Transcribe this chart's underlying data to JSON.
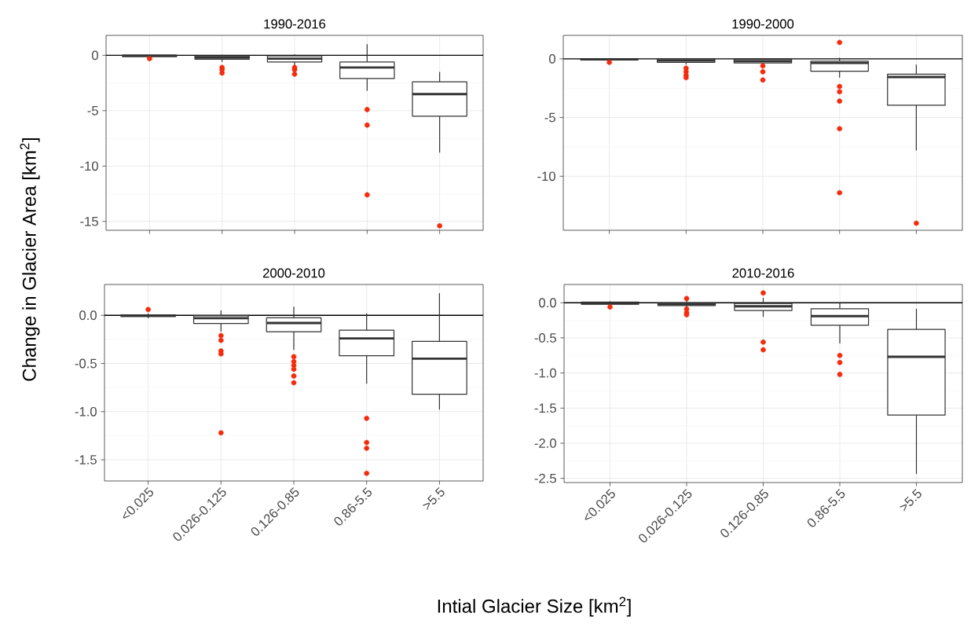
{
  "chart_data": [
    {
      "type": "box",
      "title": "1990-2016",
      "ylabel": "Change in Glacier Area [km$^{2}$]",
      "categories": [
        "<0.025",
        "0.026-0.125",
        "0.126-0.85",
        "0.86-5.5",
        ">5.5"
      ],
      "ylim": [
        -15.8,
        1.8
      ],
      "yticks": [
        -15,
        -10,
        -5,
        0
      ],
      "grid": true,
      "tick_labels": "y",
      "ref_lines": [
        {
          "axis": "y",
          "value": 0,
          "color": "#000000"
        }
      ],
      "series": [
        {
          "type": "box",
          "color": "#333333",
          "boxes": [
            {
              "low": -0.12,
              "q1": -0.1,
              "median": -0.05,
              "q3": 0,
              "high": 0.05
            },
            {
              "low": -0.6,
              "q1": -0.35,
              "median": -0.2,
              "q3": -0.05,
              "high": 0.05
            },
            {
              "low": -1.0,
              "q1": -0.6,
              "median": -0.3,
              "q3": -0.05,
              "high": 0.1
            },
            {
              "low": -3.2,
              "q1": -2.1,
              "median": -1.1,
              "q3": -0.6,
              "high": 1.0
            },
            {
              "low": -8.8,
              "q1": -5.5,
              "median": -3.5,
              "q3": -2.4,
              "high": -1.5
            }
          ]
        },
        {
          "type": "scatter",
          "color": "#f42b0c",
          "marker": "circle",
          "x": [
            "<0.025",
            "0.026-0.125",
            "0.026-0.125",
            "0.026-0.125",
            "0.026-0.125",
            "0.126-0.85",
            "0.126-0.85",
            "0.126-0.85",
            "0.86-5.5",
            "0.86-5.5",
            "0.86-5.5",
            ">5.5"
          ],
          "values": [
            -0.3,
            -1.1,
            -1.3,
            null,
            -1.6,
            -1.1,
            -1.3,
            -1.7,
            -4.9,
            -6.3,
            -12.6,
            -15.4
          ]
        }
      ]
    },
    {
      "type": "box",
      "title": "1990-2000",
      "categories": [
        "<0.025",
        "0.026-0.125",
        "0.126-0.85",
        "0.86-5.5",
        ">5.5"
      ],
      "ylim": [
        -14.6,
        2.0
      ],
      "yticks": [
        -10,
        -5,
        0
      ],
      "grid": true,
      "tick_labels": "y",
      "ref_lines": [
        {
          "axis": "y",
          "value": 0,
          "color": "#000000"
        }
      ],
      "series": [
        {
          "type": "box",
          "color": "#333333",
          "boxes": [
            {
              "low": -0.1,
              "q1": -0.08,
              "median": -0.04,
              "q3": 0,
              "high": 0.05
            },
            {
              "low": -0.5,
              "q1": -0.3,
              "median": -0.15,
              "q3": -0.02,
              "high": 0.05
            },
            {
              "low": -0.5,
              "q1": -0.35,
              "median": -0.2,
              "q3": -0.05,
              "high": 0.05
            },
            {
              "low": -1.6,
              "q1": -1.05,
              "median": -0.35,
              "q3": -0.2,
              "high": 0.1
            },
            {
              "low": -7.8,
              "q1": -3.95,
              "median": -1.55,
              "q3": -1.3,
              "high": -0.5
            }
          ]
        },
        {
          "type": "scatter",
          "color": "#f42b0c",
          "marker": "circle",
          "x": [
            "<0.025",
            "0.026-0.125",
            "0.026-0.125",
            "0.026-0.125",
            "0.026-0.125",
            "0.126-0.85",
            "0.126-0.85",
            "0.126-0.85",
            "0.86-5.5",
            "0.86-5.5",
            "0.86-5.5",
            "0.86-5.5",
            "0.86-5.5",
            "0.86-5.5",
            ">5.5"
          ],
          "values": [
            -0.3,
            -0.8,
            -1.1,
            -1.4,
            -1.6,
            -0.6,
            -1.1,
            -1.8,
            1.4,
            -2.35,
            -2.8,
            -3.6,
            -5.95,
            -11.4,
            -14.0
          ]
        }
      ]
    },
    {
      "type": "box",
      "title": "2000-2010",
      "xlabel": "Intial Glacier Size [km$^{2}$]",
      "categories": [
        "<0.025",
        "0.026-0.125",
        "0.126-0.85",
        "0.86-5.5",
        ">5.5"
      ],
      "ylim": [
        -1.72,
        0.32
      ],
      "yticks": [
        {
          "value": -1.5,
          "label": "-1.5"
        },
        {
          "value": -1,
          "label": "-1.0"
        },
        {
          "value": -0.5,
          "label": "-0.5"
        },
        {
          "value": 0,
          "label": "0.0"
        }
      ],
      "grid": true,
      "ref_lines": [
        {
          "axis": "y",
          "value": 0,
          "color": "#000000"
        }
      ],
      "series": [
        {
          "type": "box",
          "color": "#333333",
          "boxes": [
            {
              "low": -0.03,
              "q1": -0.012,
              "median": -0.005,
              "q3": 0.005,
              "high": 0.02
            },
            {
              "low": -0.17,
              "q1": -0.085,
              "median": -0.03,
              "q3": -0.005,
              "high": 0.05
            },
            {
              "low": -0.36,
              "q1": -0.17,
              "median": -0.08,
              "q3": -0.025,
              "high": 0.09
            },
            {
              "low": -0.71,
              "q1": -0.42,
              "median": -0.24,
              "q3": -0.155,
              "high": 0.02
            },
            {
              "low": -0.98,
              "q1": -0.82,
              "median": -0.45,
              "q3": -0.27,
              "high": 0.23
            }
          ]
        },
        {
          "type": "scatter",
          "color": "#f42b0c",
          "marker": "circle",
          "x": [
            "<0.025",
            "0.026-0.125",
            "0.026-0.125",
            "0.026-0.125",
            "0.026-0.125",
            "0.026-0.125",
            "0.026-0.125",
            "0.126-0.85",
            "0.126-0.85",
            "0.126-0.85",
            "0.126-0.85",
            "0.126-0.85",
            "0.126-0.85",
            "0.86-5.5",
            "0.86-5.5",
            "0.86-5.5",
            "0.86-5.5"
          ],
          "values": [
            0.06,
            -0.21,
            null,
            -0.26,
            -0.37,
            -0.4,
            -1.22,
            -0.43,
            -0.48,
            -0.52,
            -0.56,
            -0.63,
            -0.7,
            -1.07,
            -1.32,
            -1.38,
            -1.64
          ]
        }
      ]
    },
    {
      "type": "box",
      "title": "2010-2016",
      "categories": [
        "<0.025",
        "0.026-0.125",
        "0.126-0.85",
        "0.86-5.5",
        ">5.5"
      ],
      "ylim": [
        -2.56,
        0.26
      ],
      "yticks": [
        {
          "value": -2.5,
          "label": "-2.5"
        },
        {
          "value": -2,
          "label": "-2.0"
        },
        {
          "value": -1.5,
          "label": "-1.5"
        },
        {
          "value": -1,
          "label": "-1.0"
        },
        {
          "value": -0.5,
          "label": "-0.5"
        },
        {
          "value": 0,
          "label": "0.0"
        }
      ],
      "grid": true,
      "ref_lines": [
        {
          "axis": "y",
          "value": 0,
          "color": "#000000"
        }
      ],
      "series": [
        {
          "type": "box",
          "color": "#333333",
          "boxes": [
            {
              "low": -0.04,
              "q1": -0.02,
              "median": -0.005,
              "q3": 0.01,
              "high": 0.02
            },
            {
              "low": -0.08,
              "q1": -0.04,
              "median": -0.02,
              "q3": 0,
              "high": 0.03
            },
            {
              "low": -0.2,
              "q1": -0.11,
              "median": -0.05,
              "q3": -0.01,
              "high": 0.07
            },
            {
              "low": -0.58,
              "q1": -0.32,
              "median": -0.19,
              "q3": -0.085,
              "high": 0
            },
            {
              "low": -2.44,
              "q1": -1.6,
              "median": -0.77,
              "q3": -0.38,
              "high": -0.085
            }
          ]
        },
        {
          "type": "scatter",
          "color": "#f42b0c",
          "marker": "circle",
          "x": [
            "<0.025",
            "0.026-0.125",
            "0.026-0.125",
            "0.026-0.125",
            "0.026-0.125",
            "0.126-0.85",
            "0.126-0.85",
            "0.126-0.85",
            "0.86-5.5",
            "0.86-5.5",
            "0.86-5.5"
          ],
          "values": [
            -0.06,
            0.06,
            -0.09,
            -0.14,
            -0.17,
            0.14,
            -0.56,
            -0.67,
            -0.75,
            -0.85,
            -1.02
          ]
        }
      ]
    }
  ]
}
